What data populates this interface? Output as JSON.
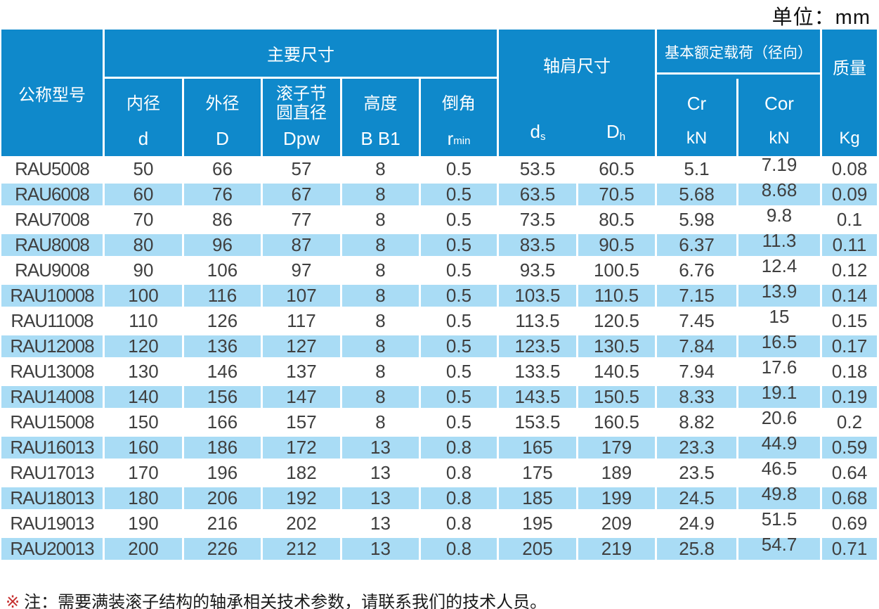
{
  "page": {
    "unit_label": "单位：mm"
  },
  "colors": {
    "header_blue": "#0f89cb",
    "row_blue": "#a9dcf5",
    "header_text": "#ffffff",
    "body_text": "#3f3f3f",
    "note_marker_red": "#c62f2f"
  },
  "table": {
    "header": {
      "model": "公称型号",
      "main_group": "主要尺寸",
      "main_cols": [
        {
          "name": "内径",
          "sym": "d"
        },
        {
          "name": "外径",
          "sym": "D"
        },
        {
          "name": "滚子节\n圆直径",
          "sym": "Dpw"
        },
        {
          "name": "高度",
          "sym": "B B1"
        },
        {
          "name": "倒角",
          "sym_base": "r",
          "sym_sub": "min"
        }
      ],
      "shoulder_group": "轴肩尺寸",
      "shoulder_cols": [
        {
          "base": "d",
          "sub": "s"
        },
        {
          "base": "D",
          "sub": "h"
        }
      ],
      "load_group": "基本额定载荷（径向）",
      "load_cols": [
        {
          "name": "Cr",
          "unit": "kN"
        },
        {
          "name": "Cor",
          "unit": "kN"
        }
      ],
      "mass_group": "质量",
      "mass_unit": "Kg"
    },
    "rows": [
      [
        "RAU5008",
        "50",
        "66",
        "57",
        "8",
        "0.5",
        "53.5",
        "60.5",
        "5.1",
        "7.19",
        "0.08"
      ],
      [
        "RAU6008",
        "60",
        "76",
        "67",
        "8",
        "0.5",
        "63.5",
        "70.5",
        "5.68",
        "8.68",
        "0.09"
      ],
      [
        "RAU7008",
        "70",
        "86",
        "77",
        "8",
        "0.5",
        "73.5",
        "80.5",
        "5.98",
        "9.8",
        "0.1"
      ],
      [
        "RAU8008",
        "80",
        "96",
        "87",
        "8",
        "0.5",
        "83.5",
        "90.5",
        "6.37",
        "11.3",
        "0.11"
      ],
      [
        "RAU9008",
        "90",
        "106",
        "97",
        "8",
        "0.5",
        "93.5",
        "100.5",
        "6.76",
        "12.4",
        "0.12"
      ],
      [
        "RAU10008",
        "100",
        "116",
        "107",
        "8",
        "0.5",
        "103.5",
        "110.5",
        "7.15",
        "13.9",
        "0.14"
      ],
      [
        "RAU11008",
        "110",
        "126",
        "117",
        "8",
        "0.5",
        "113.5",
        "120.5",
        "7.45",
        "15",
        "0.15"
      ],
      [
        "RAU12008",
        "120",
        "136",
        "127",
        "8",
        "0.5",
        "123.5",
        "130.5",
        "7.84",
        "16.5",
        "0.17"
      ],
      [
        "RAU13008",
        "130",
        "146",
        "137",
        "8",
        "0.5",
        "133.5",
        "140.5",
        "7.94",
        "17.6",
        "0.18"
      ],
      [
        "RAU14008",
        "140",
        "156",
        "147",
        "8",
        "0.5",
        "143.5",
        "150.5",
        "8.33",
        "19.1",
        "0.19"
      ],
      [
        "RAU15008",
        "150",
        "166",
        "157",
        "8",
        "0.5",
        "153.5",
        "160.5",
        "8.82",
        "20.6",
        "0.2"
      ],
      [
        "RAU16013",
        "160",
        "186",
        "172",
        "13",
        "0.8",
        "165",
        "179",
        "23.3",
        "44.9",
        "0.59"
      ],
      [
        "RAU17013",
        "170",
        "196",
        "182",
        "13",
        "0.8",
        "175",
        "189",
        "23.5",
        "46.5",
        "0.64"
      ],
      [
        "RAU18013",
        "180",
        "206",
        "192",
        "13",
        "0.8",
        "185",
        "199",
        "24.5",
        "49.8",
        "0.68"
      ],
      [
        "RAU19013",
        "190",
        "216",
        "202",
        "13",
        "0.8",
        "195",
        "209",
        "24.9",
        "51.5",
        "0.69"
      ],
      [
        "RAU20013",
        "200",
        "226",
        "212",
        "13",
        "0.8",
        "205",
        "219",
        "25.8",
        "54.7",
        "0.71"
      ]
    ]
  },
  "note": {
    "marker": "※",
    "text": "注：需要满装滚子结构的轴承相关技术参数，请联系我们的技术人员。"
  }
}
